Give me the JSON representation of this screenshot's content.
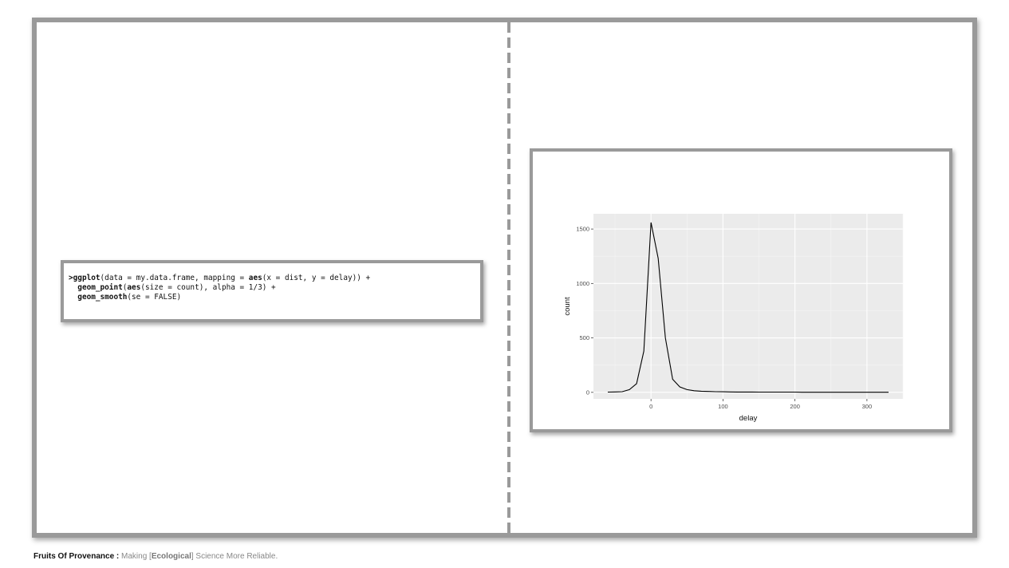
{
  "code": {
    "line1": {
      "prompt": ">",
      "fn": "ggplot",
      "a": "(data = my.data.frame, mapping = ",
      "aes": "aes",
      "b": "(x = dist, y = delay)) +"
    },
    "line2": {
      "indent": "  ",
      "fn": "geom_point",
      "a": "(",
      "aes": "aes",
      "b": "(size = count), alpha = 1/3) +"
    },
    "line3": {
      "indent": "  ",
      "fn": "geom_smooth",
      "a": "(se = FALSE)"
    }
  },
  "footer": {
    "brand": "Fruits Of Provenance :",
    "text_before": " Making [",
    "highlight": "Ecological",
    "text_after": "] Science More Reliable."
  },
  "chart_data": {
    "type": "line",
    "xlabel": "delay",
    "ylabel": "count",
    "xlim": [
      -80,
      350
    ],
    "ylim": [
      -60,
      1640
    ],
    "x_ticks": [
      0,
      100,
      200,
      300
    ],
    "y_ticks": [
      0,
      500,
      1000,
      1500
    ],
    "panel_color": "#ebebeb",
    "line_color": "#000000",
    "x": [
      -60,
      -50,
      -40,
      -30,
      -20,
      -10,
      0,
      10,
      20,
      30,
      40,
      50,
      60,
      70,
      80,
      90,
      100,
      110,
      120,
      130,
      140,
      150,
      160,
      170,
      180,
      190,
      200,
      210,
      220,
      230,
      240,
      250,
      260,
      270,
      280,
      290,
      300,
      310,
      320,
      330
    ],
    "y": [
      2,
      4,
      6,
      25,
      80,
      380,
      1560,
      1230,
      500,
      120,
      50,
      25,
      15,
      10,
      8,
      6,
      5,
      4,
      3,
      3,
      3,
      2,
      2,
      2,
      2,
      2,
      2,
      1,
      1,
      1,
      1,
      1,
      1,
      1,
      1,
      1,
      1,
      1,
      1,
      1
    ]
  }
}
